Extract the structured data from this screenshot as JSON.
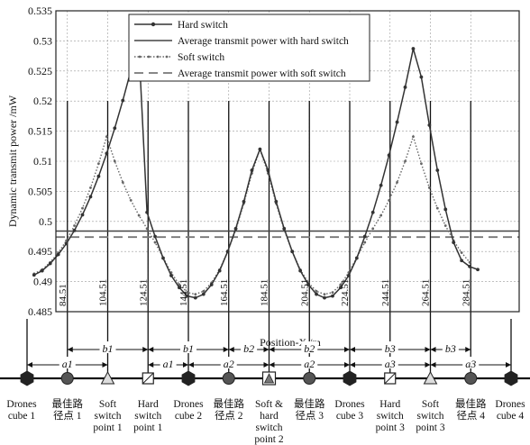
{
  "chart_data": {
    "type": "line",
    "ylabel": "Dynamic transmit power /mW",
    "ylim": [
      0.485,
      0.535
    ],
    "y_ticks": [
      "0.485",
      "0.49",
      "0.495",
      "0.5",
      "0.505",
      "0.51",
      "0.515",
      "0.52",
      "0.525",
      "0.53",
      "0.535"
    ],
    "xlim": [
      64.51,
      304.51
    ],
    "x_tick_labels": [
      "84.51",
      "104.51",
      "124.51",
      "144.51",
      "164.51",
      "184.51",
      "204.51",
      "224.51",
      "244.51",
      "264.51",
      "284.51"
    ],
    "position_label": "Position-X /m",
    "legend": [
      "Hard switch",
      "Average transmit power with hard switch",
      "Soft switch",
      "Average transmit power with soft switch"
    ],
    "series": [
      {
        "name": "Hard switch",
        "x": [
          68,
          72,
          76,
          80,
          84,
          88,
          92,
          96,
          100,
          104,
          108,
          112,
          116,
          120,
          124,
          128,
          132,
          136,
          140,
          144,
          148,
          152,
          156,
          160,
          164,
          168,
          172,
          176,
          180,
          184,
          188,
          192,
          196,
          200,
          204,
          208,
          212,
          216,
          220,
          224,
          228,
          232,
          236,
          240,
          244,
          248,
          252,
          256,
          260,
          264,
          268,
          272,
          276,
          280,
          284,
          288
        ],
        "y": [
          0.4911,
          0.4918,
          0.493,
          0.4945,
          0.4963,
          0.4985,
          0.5011,
          0.5041,
          0.5075,
          0.5113,
          0.5155,
          0.5201,
          0.5251,
          0.5287,
          0.5015,
          0.4975,
          0.4939,
          0.491,
          0.489,
          0.4876,
          0.4873,
          0.4879,
          0.4895,
          0.4918,
          0.495,
          0.4988,
          0.5033,
          0.5085,
          0.512,
          0.5085,
          0.5033,
          0.4988,
          0.495,
          0.4918,
          0.4895,
          0.4879,
          0.4873,
          0.4876,
          0.489,
          0.491,
          0.4939,
          0.4975,
          0.5015,
          0.506,
          0.511,
          0.5165,
          0.5223,
          0.5287,
          0.524,
          0.516,
          0.5085,
          0.502,
          0.4965,
          0.4935,
          0.4925,
          0.492
        ]
      },
      {
        "name": "Average transmit power with hard switch",
        "x": [
          64.51,
          304.51
        ],
        "y": [
          0.4984,
          0.4984
        ]
      },
      {
        "name": "Soft switch",
        "x": [
          68,
          72,
          76,
          80,
          84,
          88,
          92,
          96,
          100,
          104,
          108,
          112,
          116,
          120,
          124,
          128,
          132,
          136,
          140,
          144,
          148,
          152,
          156,
          160,
          164,
          168,
          172,
          176,
          180,
          184,
          188,
          192,
          196,
          200,
          204,
          208,
          212,
          216,
          220,
          224,
          228,
          232,
          236,
          240,
          244,
          248,
          252,
          256,
          260,
          264,
          268,
          272,
          276,
          280,
          284
        ],
        "y": [
          0.4913,
          0.492,
          0.4932,
          0.4948,
          0.4968,
          0.4993,
          0.5022,
          0.5056,
          0.5096,
          0.5141,
          0.51,
          0.5065,
          0.5035,
          0.501,
          0.4988,
          0.4965,
          0.494,
          0.4915,
          0.4895,
          0.4882,
          0.4879,
          0.4884,
          0.4898,
          0.492,
          0.495,
          0.4986,
          0.503,
          0.508,
          0.512,
          0.508,
          0.503,
          0.4986,
          0.495,
          0.492,
          0.4898,
          0.4884,
          0.4879,
          0.4882,
          0.4895,
          0.4915,
          0.494,
          0.4965,
          0.4988,
          0.501,
          0.5035,
          0.5065,
          0.51,
          0.5141,
          0.5096,
          0.5056,
          0.5022,
          0.4993,
          0.4968,
          0.4948,
          0.4932
        ]
      },
      {
        "name": "Average transmit power with soft switch",
        "x": [
          64.51,
          304.51
        ],
        "y": [
          0.4974,
          0.4974
        ]
      }
    ],
    "grid": true,
    "legend_position": "top-center"
  },
  "bottom_axis": {
    "markers": [
      {
        "x": 64.51,
        "shape": "hexagon",
        "label": [
          "Drones",
          "cube 1"
        ]
      },
      {
        "x": 84.51,
        "shape": "circle",
        "label": [
          "最佳路",
          "径点 1"
        ]
      },
      {
        "x": 104.51,
        "shape": "triangle",
        "label": [
          "Soft",
          "switch",
          "point 1"
        ]
      },
      {
        "x": 124.51,
        "shape": "square",
        "label": [
          "Hard",
          "switch",
          "point 1"
        ]
      },
      {
        "x": 144.51,
        "shape": "hexagon",
        "label": [
          "Drones",
          "cube 2"
        ]
      },
      {
        "x": 164.51,
        "shape": "circle",
        "label": [
          "最佳路",
          "径点 2"
        ]
      },
      {
        "x": 184.51,
        "shape": "square-triangle",
        "label": [
          "Soft &",
          "hard",
          "switch",
          "point 2"
        ]
      },
      {
        "x": 204.51,
        "shape": "circle",
        "label": [
          "最佳路",
          "径点 3"
        ]
      },
      {
        "x": 224.51,
        "shape": "hexagon",
        "label": [
          "Drones",
          "cube 3"
        ]
      },
      {
        "x": 244.51,
        "shape": "square",
        "label": [
          "Hard",
          "switch",
          "point 3"
        ]
      },
      {
        "x": 264.51,
        "shape": "triangle",
        "label": [
          "Soft",
          "switch",
          "point 3"
        ]
      },
      {
        "x": 284.51,
        "shape": "circle",
        "label": [
          "最佳路",
          "径点 4"
        ]
      },
      {
        "x": 304.51,
        "shape": "hexagon",
        "label": [
          "Drones",
          "cube 4"
        ]
      }
    ],
    "b_segments": [
      {
        "x1": 84.51,
        "x2": 124.51,
        "label": "b1"
      },
      {
        "x1": 124.51,
        "x2": 164.51,
        "label": "b1"
      },
      {
        "x1": 164.51,
        "x2": 184.51,
        "label": "b2"
      },
      {
        "x1": 184.51,
        "x2": 224.51,
        "label": "b2"
      },
      {
        "x1": 224.51,
        "x2": 264.51,
        "label": "b3"
      },
      {
        "x1": 264.51,
        "x2": 284.51,
        "label": "b3"
      }
    ],
    "a_segments": [
      {
        "x1": 64.51,
        "x2": 104.51,
        "label": "a1"
      },
      {
        "x1": 124.51,
        "x2": 144.51,
        "label": "a1"
      },
      {
        "x1": 144.51,
        "x2": 184.51,
        "label": "a2"
      },
      {
        "x1": 184.51,
        "x2": 224.51,
        "label": "a2"
      },
      {
        "x1": 224.51,
        "x2": 264.51,
        "label": "a3"
      },
      {
        "x1": 264.51,
        "x2": 304.51,
        "label": "a3"
      }
    ]
  }
}
